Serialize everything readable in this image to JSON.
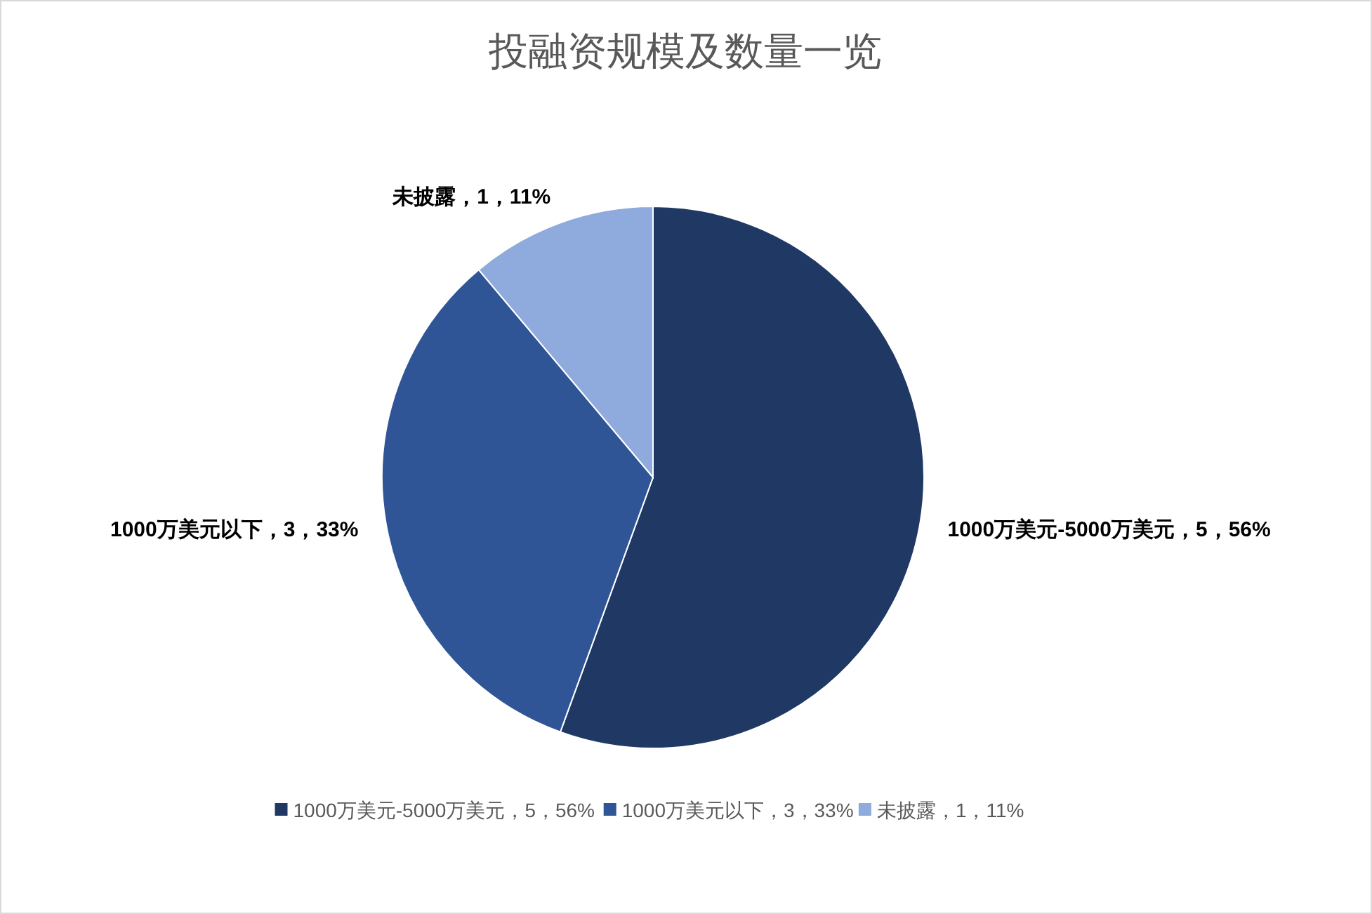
{
  "chart_data": {
    "type": "pie",
    "title": "投融资规模及数量一览",
    "categories": [
      "1000万美元-5000万美元，5，56%",
      "1000万美元以下，3，33%",
      "未披露，1，11%"
    ],
    "values": [
      5,
      3,
      1
    ],
    "colors": [
      "#203864",
      "#2f5597",
      "#8faadc"
    ],
    "legend": "bottom"
  }
}
